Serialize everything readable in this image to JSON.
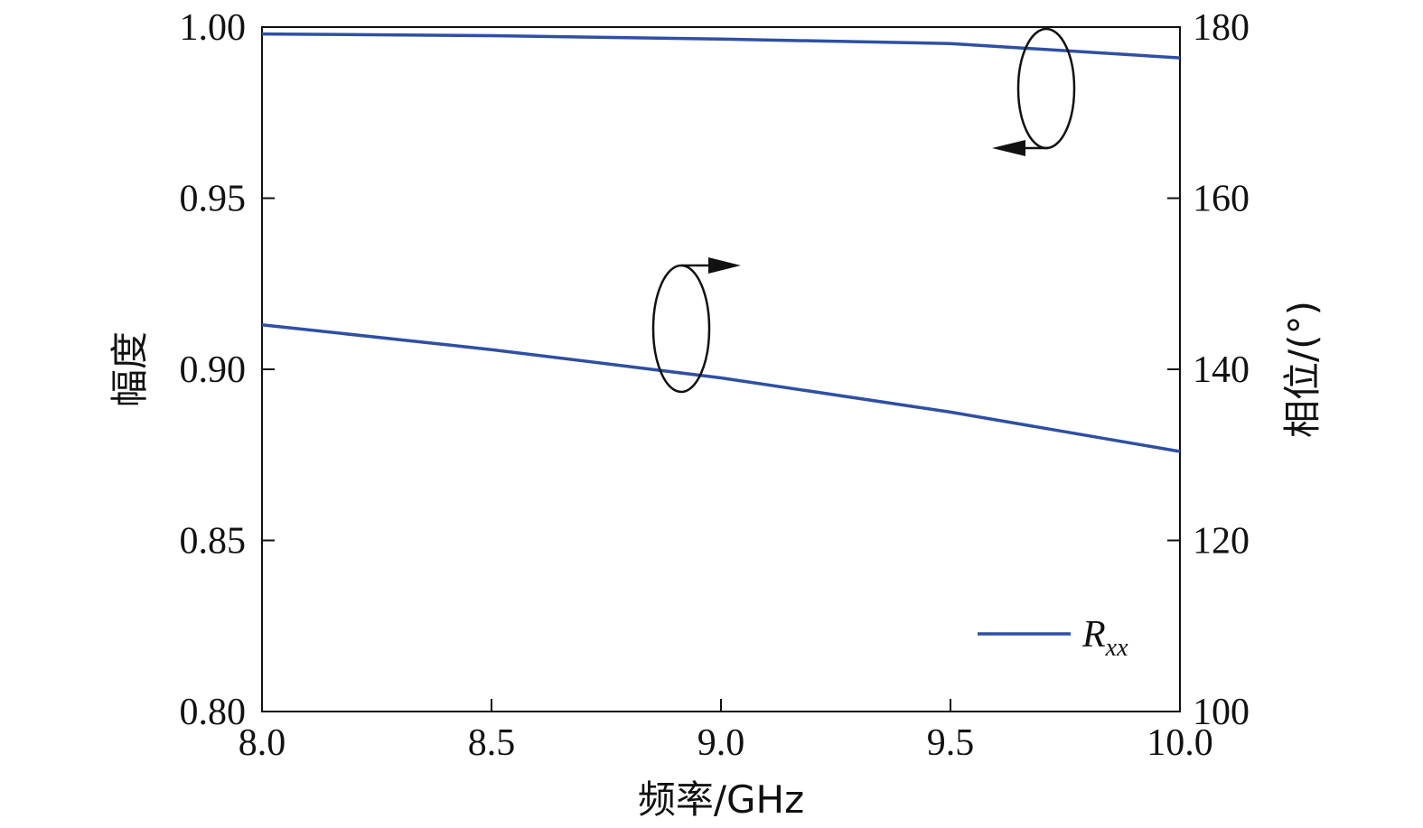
{
  "chart_data": {
    "type": "line",
    "xlabel": "频率/GHz",
    "ylabel_left": "幅度",
    "ylabel_right": "相位/(°)",
    "xlim": [
      8.0,
      10.0
    ],
    "ylim_left": [
      0.8,
      1.0
    ],
    "ylim_right": [
      100,
      180
    ],
    "x_ticks": [
      "8.0",
      "8.5",
      "9.0",
      "9.5",
      "10.0"
    ],
    "y_ticks_left": [
      "0.80",
      "0.85",
      "0.90",
      "0.95",
      "1.00"
    ],
    "y_ticks_right": [
      "100",
      "120",
      "140",
      "160",
      "180"
    ],
    "grid": false,
    "legend_position": "bottom-right",
    "color": "#2e4fa3",
    "series": [
      {
        "name": "Rxx",
        "axis": "left",
        "x": [
          8.0,
          8.5,
          9.0,
          9.5,
          10.0
        ],
        "y": [
          0.998,
          0.9975,
          0.9965,
          0.9952,
          0.991
        ]
      },
      {
        "name": "Rxx",
        "axis": "right",
        "x": [
          8.0,
          8.5,
          9.0,
          9.5,
          10.0
        ],
        "y": [
          145.2,
          142.3,
          139.0,
          135.0,
          130.4
        ]
      }
    ],
    "legend": {
      "main": "R",
      "sub": "xx"
    }
  }
}
